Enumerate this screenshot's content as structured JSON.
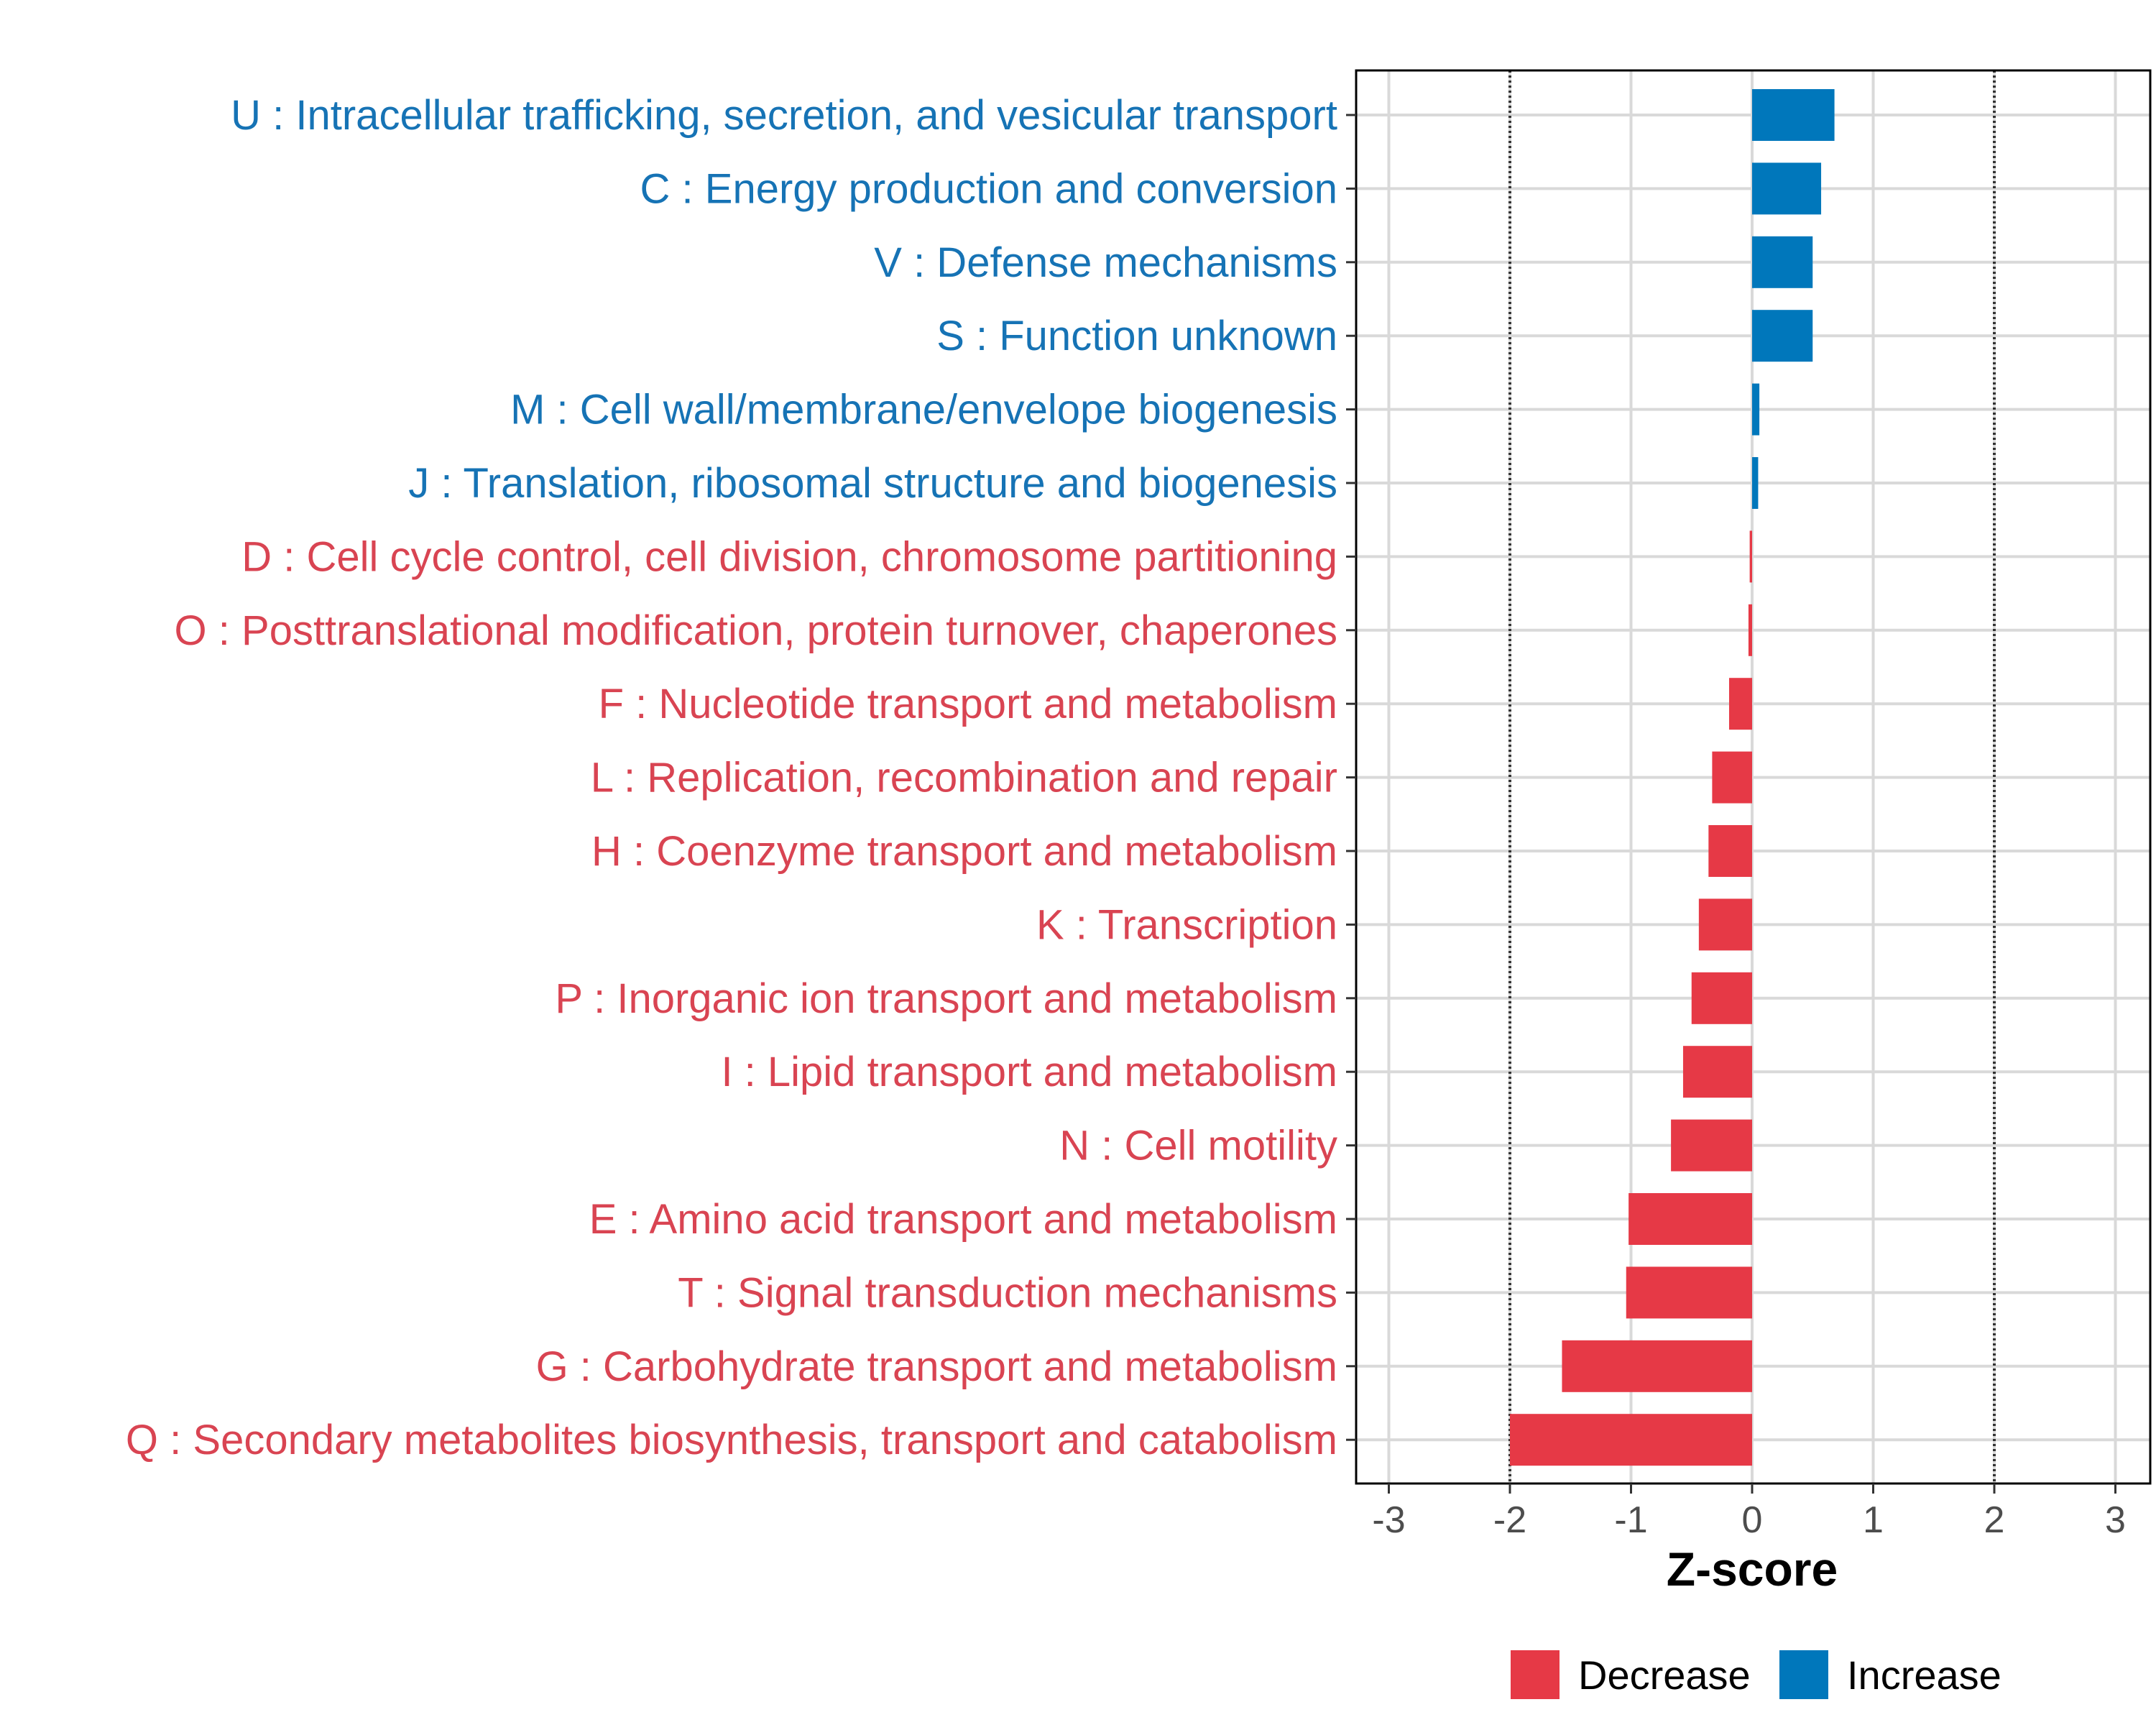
{
  "chart_data": {
    "type": "bar",
    "orientation": "horizontal",
    "title": "",
    "xlabel": "Z-score",
    "ylabel": "",
    "xlim": [
      -3.3,
      3.3
    ],
    "xticks": [
      -3,
      -2,
      -1,
      0,
      1,
      2,
      3
    ],
    "xtick_labels": [
      "-3",
      "-2",
      "-1",
      "0",
      "1",
      "2",
      "3"
    ],
    "reference_lines": [
      -2,
      2
    ],
    "grid": true,
    "categories": [
      "U : Intracellular trafficking, secretion, and vesicular transport",
      "C : Energy production and conversion",
      "V : Defense mechanisms",
      "S : Function unknown",
      "M : Cell wall/membrane/envelope biogenesis",
      "J : Translation, ribosomal structure and biogenesis",
      "D : Cell cycle control, cell division, chromosome partitioning",
      "O : Posttranslational modification, protein turnover, chaperones",
      "F : Nucleotide transport and metabolism",
      "L : Replication, recombination and repair",
      "H : Coenzyme transport and metabolism",
      "K : Transcription",
      "P : Inorganic ion transport and metabolism",
      "I : Lipid transport and metabolism",
      "N : Cell motility",
      "E : Amino acid transport and metabolism",
      "T : Signal transduction mechanisms",
      "G : Carbohydrate transport and metabolism",
      "Q : Secondary metabolites biosynthesis, transport and catabolism"
    ],
    "values": [
      0.68,
      0.57,
      0.5,
      0.5,
      0.06,
      0.05,
      -0.02,
      -0.03,
      -0.19,
      -0.33,
      -0.36,
      -0.44,
      -0.5,
      -0.57,
      -0.67,
      -1.02,
      -1.04,
      -1.57,
      -2.0
    ],
    "groups": [
      "Increase",
      "Increase",
      "Increase",
      "Increase",
      "Increase",
      "Increase",
      "Decrease",
      "Decrease",
      "Decrease",
      "Decrease",
      "Decrease",
      "Decrease",
      "Decrease",
      "Decrease",
      "Decrease",
      "Decrease",
      "Decrease",
      "Decrease",
      "Decrease"
    ],
    "legend": [
      {
        "name": "Decrease",
        "color": "#E63946"
      },
      {
        "name": "Increase",
        "color": "#0077BB"
      }
    ],
    "legend_position": "bottom"
  },
  "colors": {
    "Decrease": "#E63946",
    "Increase": "#0077BB",
    "label_decrease": "#D94452",
    "label_increase": "#1673B5"
  }
}
